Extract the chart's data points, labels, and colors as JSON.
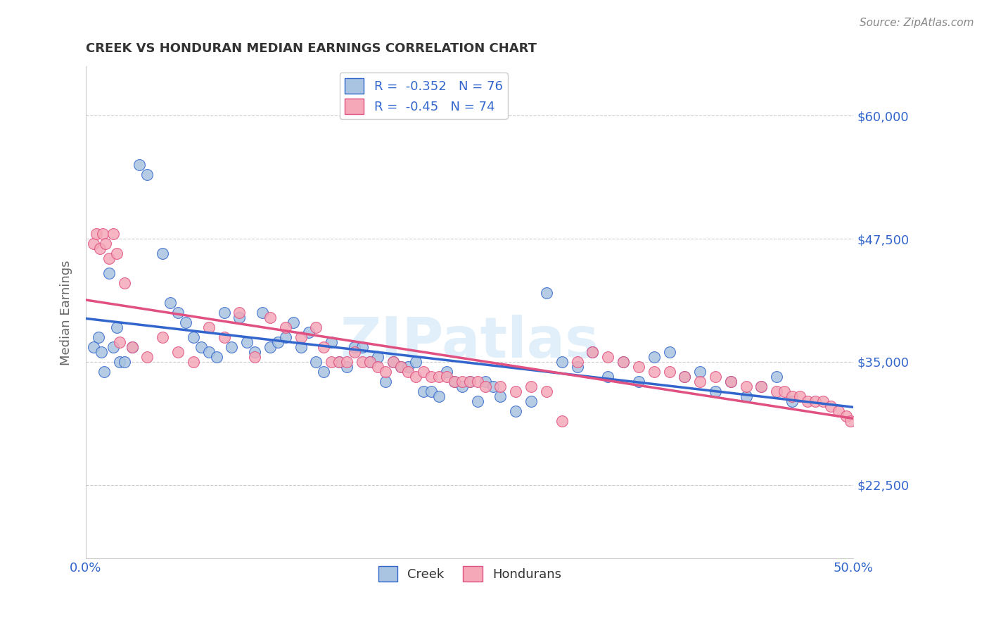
{
  "title": "CREEK VS HONDURAN MEDIAN EARNINGS CORRELATION CHART",
  "source_text": "Source: ZipAtlas.com",
  "ylabel": "Median Earnings",
  "watermark": "ZIPatlas",
  "creek_color": "#a8c4e0",
  "honduran_color": "#f4a8b8",
  "creek_line_color": "#3366cc",
  "honduran_line_color": "#e05080",
  "creek_R": -0.352,
  "creek_N": 76,
  "honduran_R": -0.45,
  "honduran_N": 74,
  "xlim": [
    0.0,
    0.5
  ],
  "ylim": [
    15000,
    65000
  ],
  "yticks": [
    22500,
    35000,
    47500,
    60000
  ],
  "ytick_labels": [
    "$22,500",
    "$35,000",
    "$47,500",
    "$60,000"
  ],
  "xticks": [
    0.0,
    0.1,
    0.2,
    0.3,
    0.4,
    0.5
  ],
  "background_color": "#ffffff",
  "axis_color": "#3366cc",
  "legend_text_color": "#3366cc",
  "creek_scatter": {
    "x": [
      0.005,
      0.008,
      0.01,
      0.012,
      0.015,
      0.018,
      0.02,
      0.022,
      0.025,
      0.03,
      0.035,
      0.04,
      0.05,
      0.055,
      0.06,
      0.065,
      0.07,
      0.075,
      0.08,
      0.085,
      0.09,
      0.095,
      0.1,
      0.105,
      0.11,
      0.115,
      0.12,
      0.125,
      0.13,
      0.135,
      0.14,
      0.145,
      0.15,
      0.155,
      0.16,
      0.165,
      0.17,
      0.175,
      0.18,
      0.185,
      0.19,
      0.195,
      0.2,
      0.205,
      0.21,
      0.215,
      0.22,
      0.225,
      0.23,
      0.235,
      0.24,
      0.245,
      0.25,
      0.255,
      0.26,
      0.265,
      0.27,
      0.28,
      0.29,
      0.3,
      0.31,
      0.32,
      0.33,
      0.34,
      0.35,
      0.36,
      0.37,
      0.38,
      0.39,
      0.4,
      0.41,
      0.42,
      0.43,
      0.44,
      0.45,
      0.46
    ],
    "y": [
      36500,
      37500,
      36000,
      34000,
      44000,
      36500,
      38500,
      35000,
      35000,
      36500,
      55000,
      54000,
      46000,
      41000,
      40000,
      39000,
      37500,
      36500,
      36000,
      35500,
      40000,
      36500,
      39500,
      37000,
      36000,
      40000,
      36500,
      37000,
      37500,
      39000,
      36500,
      38000,
      35000,
      34000,
      37000,
      35000,
      34500,
      36500,
      36500,
      35000,
      35500,
      33000,
      35000,
      34500,
      34500,
      35000,
      32000,
      32000,
      31500,
      34000,
      33000,
      32500,
      33000,
      31000,
      33000,
      32500,
      31500,
      30000,
      31000,
      42000,
      35000,
      34500,
      36000,
      33500,
      35000,
      33000,
      35500,
      36000,
      33500,
      34000,
      32000,
      33000,
      31500,
      32500,
      33500,
      31000
    ]
  },
  "honduran_scatter": {
    "x": [
      0.005,
      0.007,
      0.009,
      0.011,
      0.013,
      0.015,
      0.018,
      0.02,
      0.022,
      0.025,
      0.03,
      0.04,
      0.05,
      0.06,
      0.07,
      0.08,
      0.09,
      0.1,
      0.11,
      0.12,
      0.13,
      0.14,
      0.15,
      0.155,
      0.16,
      0.165,
      0.17,
      0.175,
      0.18,
      0.185,
      0.19,
      0.195,
      0.2,
      0.205,
      0.21,
      0.215,
      0.22,
      0.225,
      0.23,
      0.235,
      0.24,
      0.245,
      0.25,
      0.255,
      0.26,
      0.27,
      0.28,
      0.29,
      0.3,
      0.31,
      0.32,
      0.33,
      0.34,
      0.35,
      0.36,
      0.37,
      0.38,
      0.39,
      0.4,
      0.41,
      0.42,
      0.43,
      0.44,
      0.45,
      0.455,
      0.46,
      0.465,
      0.47,
      0.475,
      0.48,
      0.485,
      0.49,
      0.495,
      0.498
    ],
    "y": [
      47000,
      48000,
      46500,
      48000,
      47000,
      45500,
      48000,
      46000,
      37000,
      43000,
      36500,
      35500,
      37500,
      36000,
      35000,
      38500,
      37500,
      40000,
      35500,
      39500,
      38500,
      37500,
      38500,
      36500,
      35000,
      35000,
      35000,
      36000,
      35000,
      35000,
      34500,
      34000,
      35000,
      34500,
      34000,
      33500,
      34000,
      33500,
      33500,
      33500,
      33000,
      33000,
      33000,
      33000,
      32500,
      32500,
      32000,
      32500,
      32000,
      29000,
      35000,
      36000,
      35500,
      35000,
      34500,
      34000,
      34000,
      33500,
      33000,
      33500,
      33000,
      32500,
      32500,
      32000,
      32000,
      31500,
      31500,
      31000,
      31000,
      31000,
      30500,
      30000,
      29500,
      29000
    ]
  }
}
